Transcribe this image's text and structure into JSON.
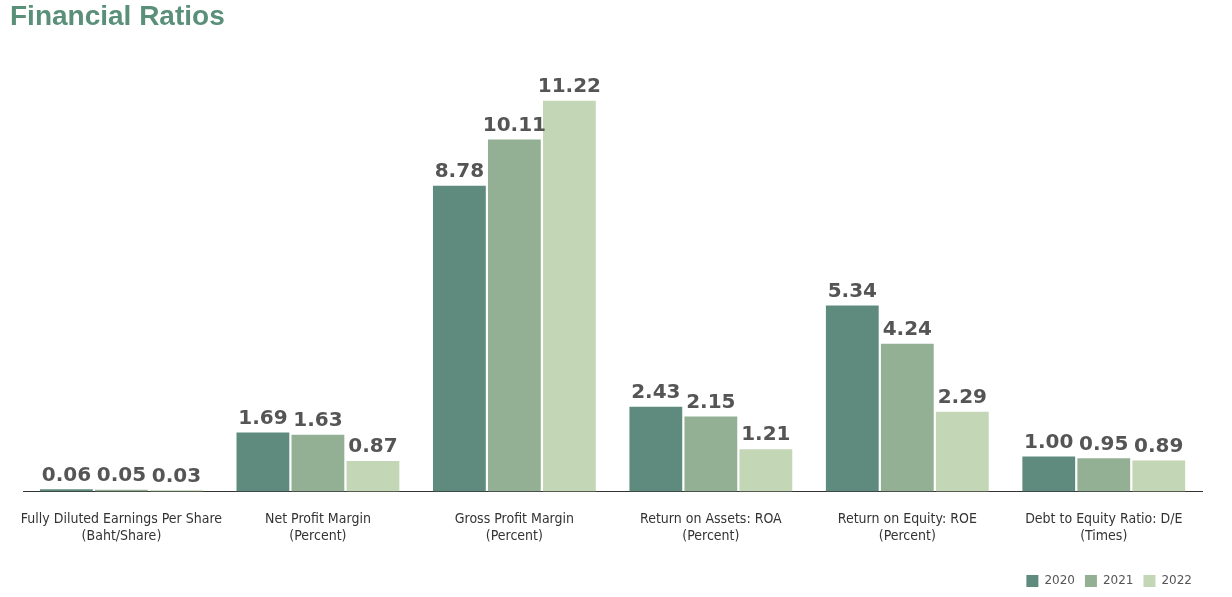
{
  "chart_data": {
    "type": "bar",
    "title": "Financial Ratios",
    "categories": [
      "Fully Diluted Earnings Per Share\n(Baht/Share)",
      "Net Profit Margin\n(Percent)",
      "Gross Profit Margin\n(Percent)",
      "Return on Assets: ROA\n(Percent)",
      "Return on Equity: ROE\n(Percent)",
      "Debt to Equity Ratio: D/E\n(Times)"
    ],
    "series": [
      {
        "name": "2020",
        "color": "#5f8b7f",
        "values": [
          0.06,
          1.69,
          8.78,
          2.43,
          5.34,
          1.0
        ],
        "value_labels": [
          "0.06",
          "1.69",
          "8.78",
          "2.43",
          "5.34",
          "1.00"
        ]
      },
      {
        "name": "2021",
        "color": "#93b095",
        "values": [
          0.05,
          1.63,
          10.11,
          2.15,
          4.24,
          0.95
        ],
        "value_labels": [
          "0.05",
          "1.63",
          "10.11",
          "2.15",
          "4.24",
          "0.95"
        ]
      },
      {
        "name": "2022",
        "color": "#c3d6b5",
        "values": [
          0.03,
          0.87,
          11.22,
          1.21,
          2.29,
          0.89
        ],
        "value_labels": [
          "0.03",
          "0.87",
          "11.22",
          "1.21",
          "2.29",
          "0.89"
        ]
      }
    ],
    "legend": "bottom right"
  }
}
